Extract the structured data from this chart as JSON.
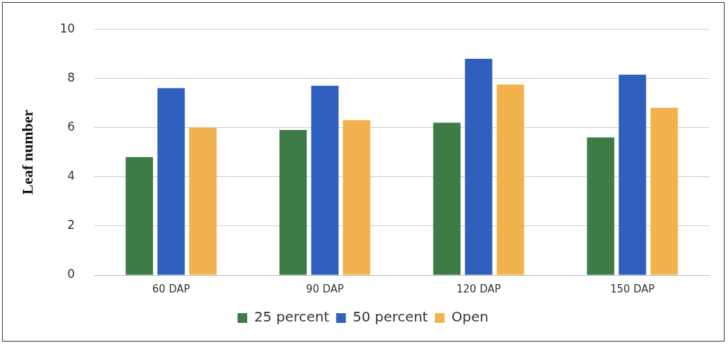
{
  "chart_data": {
    "type": "bar",
    "ylabel": "Leaf number",
    "categories": [
      "60 DAP",
      "90 DAP",
      "120 DAP",
      "150 DAP"
    ],
    "series": [
      {
        "name": "25 percent",
        "color": "#3e7b47",
        "values": [
          4.8,
          5.9,
          6.2,
          5.6
        ]
      },
      {
        "name": "50 percent",
        "color": "#2f5fbf",
        "values": [
          7.6,
          7.7,
          8.8,
          8.15
        ]
      },
      {
        "name": "Open",
        "color": "#f2b24e",
        "values": [
          6.0,
          6.3,
          7.75,
          6.8
        ]
      }
    ],
    "ylim": [
      0,
      10
    ],
    "yticks": [
      0,
      2,
      4,
      6,
      8,
      10
    ],
    "grid": "y",
    "legend": "bottom"
  }
}
